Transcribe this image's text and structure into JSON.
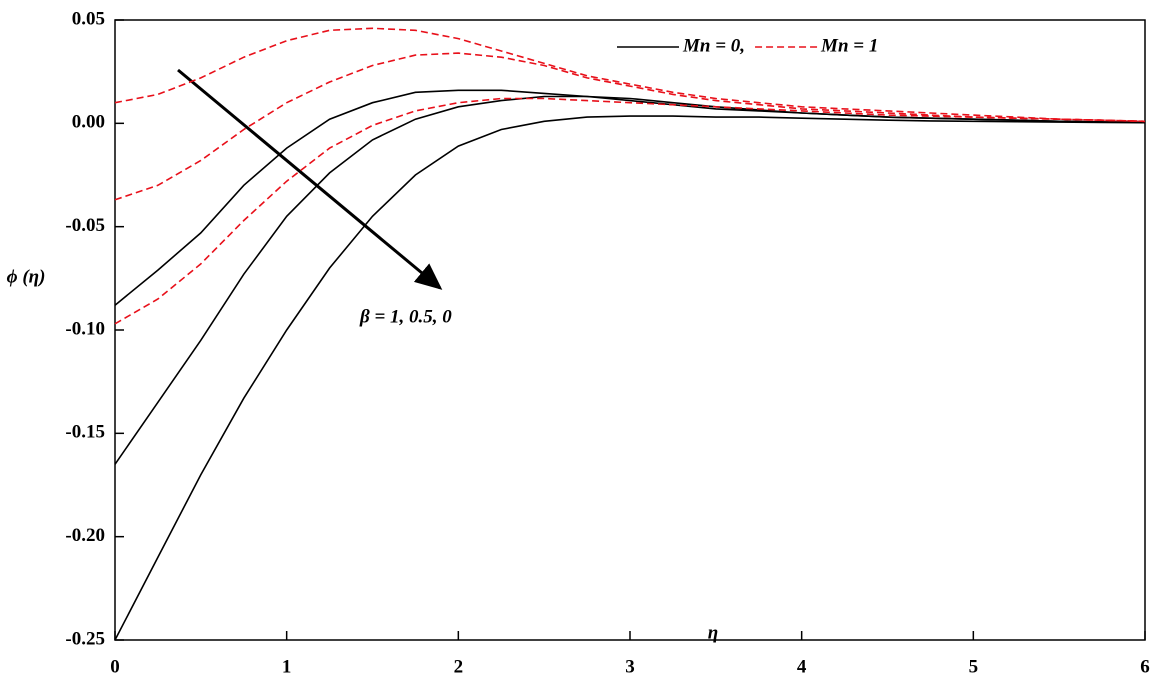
{
  "chart_data": {
    "type": "line",
    "x": [
      0,
      0.25,
      0.5,
      0.75,
      1,
      1.25,
      1.5,
      1.75,
      2,
      2.25,
      2.5,
      2.75,
      3,
      3.25,
      3.5,
      3.75,
      4,
      4.25,
      4.5,
      4.75,
      5,
      5.25,
      5.5,
      5.75,
      6
    ],
    "series": [
      {
        "name": "Mn = 0,",
        "color": "#000000",
        "dashed": false,
        "lines": [
          [
            -0.088,
            -0.071,
            -0.053,
            -0.03,
            -0.012,
            0.002,
            0.01,
            0.015,
            0.016,
            0.016,
            0.0145,
            0.013,
            0.011,
            0.009,
            0.007,
            0.006,
            0.005,
            0.004,
            0.003,
            0.0025,
            0.002,
            0.0015,
            0.001,
            0.0007,
            0.0005
          ],
          [
            -0.165,
            -0.135,
            -0.105,
            -0.073,
            -0.045,
            -0.024,
            -0.008,
            0.002,
            0.008,
            0.011,
            0.013,
            0.013,
            0.012,
            0.01,
            0.008,
            0.0065,
            0.005,
            0.004,
            0.003,
            0.0025,
            0.002,
            0.0015,
            0.001,
            0.0007,
            0.0005
          ],
          [
            -0.25,
            -0.21,
            -0.17,
            -0.133,
            -0.1,
            -0.07,
            -0.045,
            -0.025,
            -0.011,
            -0.003,
            0.001,
            0.003,
            0.0035,
            0.0035,
            0.003,
            0.003,
            0.0025,
            0.002,
            0.0015,
            0.0012,
            0.001,
            0.0008,
            0.0006,
            0.0004,
            0.0003
          ]
        ]
      },
      {
        "name": "Mn = 1",
        "color": "#e8101a",
        "dashed": true,
        "lines": [
          [
            0.01,
            0.014,
            0.022,
            0.032,
            0.04,
            0.045,
            0.046,
            0.045,
            0.041,
            0.035,
            0.029,
            0.023,
            0.019,
            0.015,
            0.012,
            0.01,
            0.008,
            0.007,
            0.006,
            0.005,
            0.004,
            0.003,
            0.002,
            0.0015,
            0.001
          ],
          [
            -0.037,
            -0.03,
            -0.018,
            -0.003,
            0.01,
            0.02,
            0.028,
            0.033,
            0.034,
            0.032,
            0.028,
            0.022,
            0.018,
            0.014,
            0.011,
            0.009,
            0.007,
            0.006,
            0.005,
            0.004,
            0.003,
            0.0025,
            0.002,
            0.0015,
            0.001
          ],
          [
            -0.097,
            -0.085,
            -0.068,
            -0.047,
            -0.028,
            -0.012,
            -0.001,
            0.006,
            0.01,
            0.012,
            0.012,
            0.011,
            0.01,
            0.009,
            0.008,
            0.007,
            0.006,
            0.005,
            0.004,
            0.0035,
            0.003,
            0.0025,
            0.002,
            0.0015,
            0.001
          ]
        ]
      }
    ],
    "xlabel": "η",
    "ylabel": "ϕ (η)",
    "annotation": "β = 1, 0.5, 0",
    "xlim": [
      0,
      6
    ],
    "xticks": [
      0,
      1,
      2,
      3,
      4,
      5,
      6
    ],
    "ylim": [
      -0.25,
      0.05
    ],
    "yticks": [
      {
        "value": -0.25,
        "label": "-0.25"
      },
      {
        "value": -0.2,
        "label": "-0.20"
      },
      {
        "value": -0.15,
        "label": "-0.15"
      },
      {
        "value": -0.1,
        "label": "-0.10"
      },
      {
        "value": -0.05,
        "label": "-0.05"
      },
      {
        "value": 0,
        "label": "0.00"
      },
      {
        "value": 0.05,
        "label": "0.05"
      }
    ],
    "legend": "upper right"
  }
}
